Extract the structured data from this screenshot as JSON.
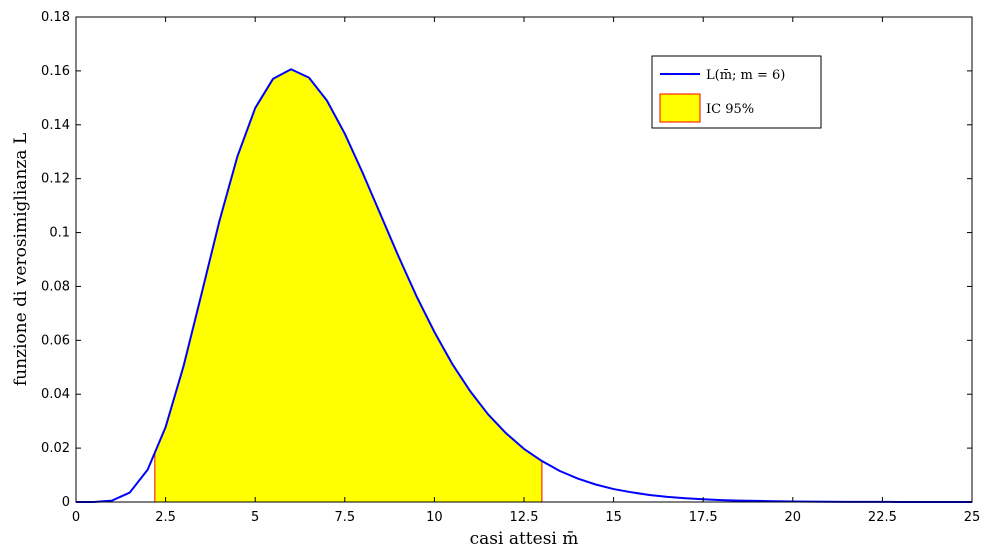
{
  "chart_data": {
    "type": "area",
    "xlabel": "casi attesi m̄",
    "ylabel": "funzione di verosimiglianza L",
    "xlim": [
      0,
      25
    ],
    "ylim": [
      0,
      0.18
    ],
    "x_ticks": [
      0,
      2.5,
      5,
      7.5,
      10,
      12.5,
      15,
      17.5,
      20,
      22.5,
      25
    ],
    "x_tick_labels": [
      "0",
      "2.5",
      "5",
      "7.5",
      "10",
      "12.5",
      "15",
      "17.5",
      "20",
      "22.5",
      "25"
    ],
    "y_ticks": [
      0,
      0.02,
      0.04,
      0.06,
      0.08,
      0.1,
      0.12,
      0.14,
      0.16,
      0.18
    ],
    "y_tick_labels": [
      "0",
      "0.02",
      "0.04",
      "0.06",
      "0.08",
      "0.1",
      "0.12",
      "0.14",
      "0.16",
      "0.18"
    ],
    "grid": false,
    "legend_position": "top-right",
    "series": [
      {
        "name": "L(m̄; m = 6)",
        "color": "#0000ff",
        "x": [
          0,
          0.5,
          1,
          1.5,
          2,
          2.5,
          3,
          3.5,
          4,
          4.5,
          5,
          5.5,
          6,
          6.5,
          7,
          7.5,
          8,
          8.5,
          9,
          9.5,
          10,
          10.5,
          11,
          11.5,
          12,
          12.5,
          13,
          13.5,
          14,
          14.5,
          15,
          15.5,
          16,
          16.5,
          17,
          17.5,
          18,
          18.5,
          19,
          19.5,
          20,
          20.5,
          21,
          21.5,
          22,
          22.5,
          23,
          23.5,
          24,
          24.5,
          25
        ],
        "y": [
          0,
          2e-05,
          0.0005,
          0.0035,
          0.012,
          0.0278,
          0.0504,
          0.0771,
          0.1042,
          0.1281,
          0.1462,
          0.1571,
          0.1606,
          0.1575,
          0.149,
          0.1367,
          0.1221,
          0.1066,
          0.0911,
          0.0764,
          0.0631,
          0.0512,
          0.0411,
          0.0325,
          0.0255,
          0.0197,
          0.0152,
          0.0115,
          0.0087,
          0.0065,
          0.0048,
          0.0036,
          0.0026,
          0.0019,
          0.0014,
          0.001,
          0.0007,
          0.0005,
          0.0004,
          0.0003,
          0.0002,
          0.00013,
          9e-05,
          6e-05,
          4e-05,
          3e-05,
          2e-05,
          1e-05,
          1e-05,
          0,
          0
        ]
      }
    ],
    "shaded_interval": {
      "name": "IC 95%",
      "fill": "#ffff00",
      "edge": "#ff0000",
      "x_low": 2.2,
      "x_high": 13.0
    }
  }
}
